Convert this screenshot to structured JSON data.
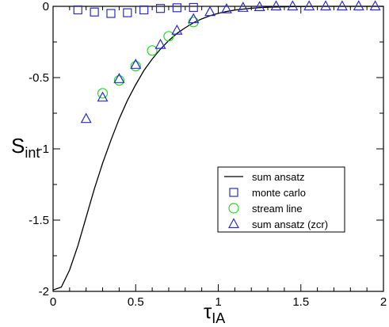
{
  "chart_data": {
    "type": "scatter",
    "xlabel": {
      "main": "τ",
      "sub": "IA"
    },
    "ylabel": {
      "main": "S",
      "sub": "int"
    },
    "xlim": [
      0,
      2
    ],
    "ylim": [
      -2,
      0
    ],
    "xticks": [
      0,
      0.5,
      1,
      1.5,
      2
    ],
    "xtick_labels": [
      "0",
      "0.5",
      "1",
      "1.5",
      "2"
    ],
    "yticks": [
      0,
      -0.5,
      -1,
      -1.5,
      -2
    ],
    "ytick_labels": [
      "0",
      "-0.5",
      "-1",
      "-1.5",
      "-2"
    ],
    "grid": false,
    "legend_position": "bottom-right",
    "series": [
      {
        "name": "sum ansatz",
        "kind": "line",
        "color": "#000000",
        "points": [
          [
            0,
            -1.99
          ],
          [
            0.05,
            -1.97
          ],
          [
            0.1,
            -1.85
          ],
          [
            0.15,
            -1.68
          ],
          [
            0.2,
            -1.48
          ],
          [
            0.25,
            -1.28
          ],
          [
            0.3,
            -1.1
          ],
          [
            0.35,
            -0.94
          ],
          [
            0.4,
            -0.79
          ],
          [
            0.45,
            -0.66
          ],
          [
            0.5,
            -0.55
          ],
          [
            0.55,
            -0.45
          ],
          [
            0.6,
            -0.37
          ],
          [
            0.65,
            -0.3
          ],
          [
            0.7,
            -0.24
          ],
          [
            0.75,
            -0.19
          ],
          [
            0.8,
            -0.15
          ],
          [
            0.85,
            -0.115
          ],
          [
            0.9,
            -0.088
          ],
          [
            0.95,
            -0.066
          ],
          [
            1.0,
            -0.049
          ],
          [
            1.05,
            -0.036
          ],
          [
            1.1,
            -0.026
          ],
          [
            1.2,
            -0.013
          ],
          [
            1.3,
            -0.006
          ],
          [
            1.4,
            -0.003
          ],
          [
            1.5,
            -0.001
          ],
          [
            1.6,
            0
          ],
          [
            1.8,
            0
          ],
          [
            2.0,
            0
          ]
        ]
      },
      {
        "name": "monte carlo",
        "kind": "square",
        "color": "#2a2ad8",
        "points": [
          [
            0.15,
            -0.025
          ],
          [
            0.25,
            -0.04
          ],
          [
            0.35,
            -0.05
          ],
          [
            0.45,
            -0.045
          ],
          [
            0.55,
            -0.025
          ],
          [
            0.65,
            -0.015
          ],
          [
            0.75,
            -0.01
          ],
          [
            0.85,
            -0.008
          ]
        ]
      },
      {
        "name": "stream line",
        "kind": "circle",
        "color": "#22dd22",
        "points": [
          [
            0.3,
            -0.61
          ],
          [
            0.4,
            -0.52
          ],
          [
            0.5,
            -0.42
          ],
          [
            0.6,
            -0.31
          ],
          [
            0.7,
            -0.21
          ],
          [
            0.85,
            -0.11
          ]
        ]
      },
      {
        "name": "sum ansatz (zcr)",
        "kind": "triangle",
        "color": "#2a2ad8",
        "points": [
          [
            0.2,
            -0.79
          ],
          [
            0.3,
            -0.64
          ],
          [
            0.4,
            -0.51
          ],
          [
            0.5,
            -0.41
          ],
          [
            0.65,
            -0.27
          ],
          [
            0.75,
            -0.17
          ],
          [
            0.85,
            -0.09
          ],
          [
            0.95,
            -0.04
          ],
          [
            1.05,
            -0.02
          ],
          [
            1.15,
            -0.01
          ],
          [
            1.25,
            -0.005
          ],
          [
            1.35,
            0
          ],
          [
            1.45,
            0
          ],
          [
            1.55,
            0
          ],
          [
            1.65,
            0
          ],
          [
            1.75,
            0
          ],
          [
            1.85,
            0
          ],
          [
            1.95,
            0
          ]
        ]
      }
    ]
  }
}
